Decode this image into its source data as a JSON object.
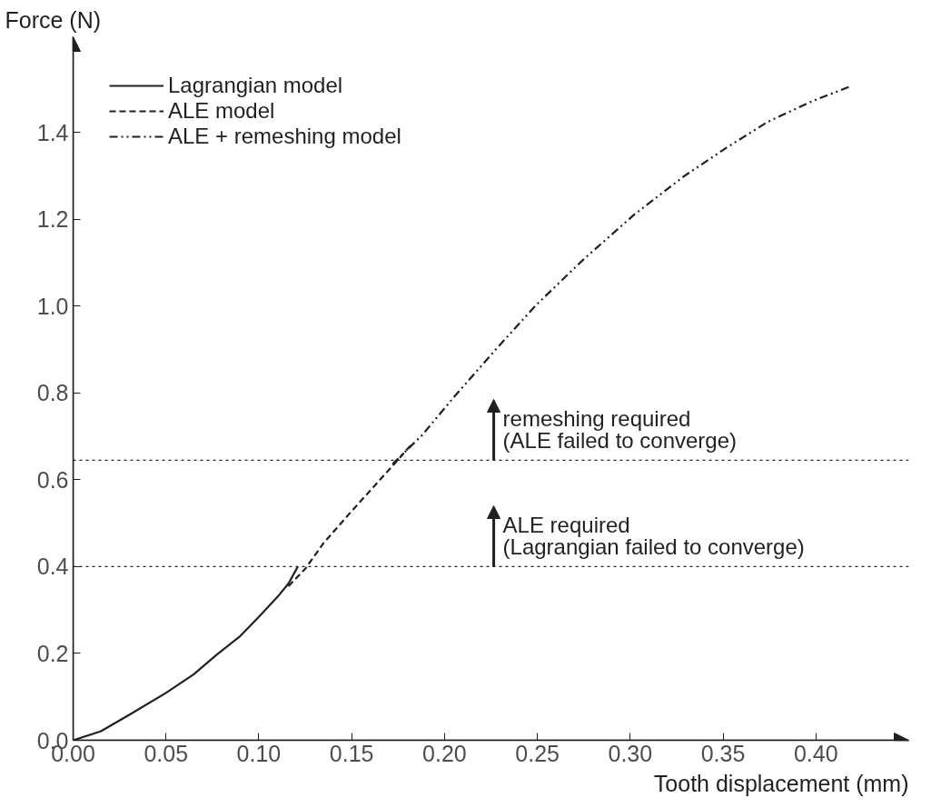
{
  "chart_data": {
    "type": "line",
    "xlabel": "Tooth displacement (mm)",
    "ylabel": "Force (N)",
    "xlim": [
      0,
      0.45
    ],
    "ylim": [
      0,
      1.62
    ],
    "xticks": [
      {
        "value": 0,
        "label": "0.00"
      },
      0.05,
      {
        "value": 0.1,
        "label": "0.10"
      },
      0.15,
      {
        "value": 0.2,
        "label": "0.20"
      },
      0.25,
      {
        "value": 0.3,
        "label": "0.30"
      },
      0.35,
      {
        "value": 0.4,
        "label": "0.40"
      }
    ],
    "yticks": [
      {
        "value": 0,
        "label": "0.0"
      },
      0.2,
      0.4,
      0.6,
      0.8,
      {
        "value": 1,
        "label": "1.0"
      },
      1.2,
      1.4
    ],
    "grid": false,
    "legend": "top left",
    "series": [
      {
        "name": "Lagrangian model",
        "color": "#231f20",
        "line_style": "solid",
        "x": [
          0,
          0.015,
          0.03,
          0.05,
          0.065,
          0.077,
          0.09,
          0.1,
          0.11,
          0.116,
          0.121
        ],
        "values": [
          0,
          0.021,
          0.058,
          0.109,
          0.152,
          0.196,
          0.24,
          0.284,
          0.33,
          0.361,
          0.4
        ]
      },
      {
        "name": "ALE model",
        "color": "#231f20",
        "line_style": "dashed",
        "x": [
          0.116,
          0.125,
          0.135,
          0.149,
          0.16,
          0.172,
          0.182
        ],
        "values": [
          0.355,
          0.395,
          0.455,
          0.523,
          0.575,
          0.632,
          0.68
        ]
      },
      {
        "name": "ALE + remeshing model",
        "color": "#231f20",
        "line_style": "dashdot",
        "x": [
          0.172,
          0.188,
          0.205,
          0.228,
          0.2495,
          0.275,
          0.302,
          0.329,
          0.352,
          0.374,
          0.397,
          0.418
        ],
        "values": [
          0.636,
          0.703,
          0.79,
          0.902,
          1.003,
          1.108,
          1.21,
          1.299,
          1.365,
          1.424,
          1.47,
          1.505
        ]
      }
    ],
    "ref_lines": [
      {
        "axis": "y",
        "value": 0.4,
        "color": "#231f20",
        "line_style": "dotted"
      },
      {
        "axis": "y",
        "value": 0.645,
        "color": "#231f20",
        "line_style": "dotted"
      }
    ],
    "annotations": [
      {
        "text": "ALE required\n(Lagrangian failed to converge)",
        "x": 0.2265,
        "y": 0.4
      },
      {
        "text": "remeshing required\n(ALE failed to converge)",
        "x": 0.2265,
        "y": 0.645
      }
    ]
  }
}
